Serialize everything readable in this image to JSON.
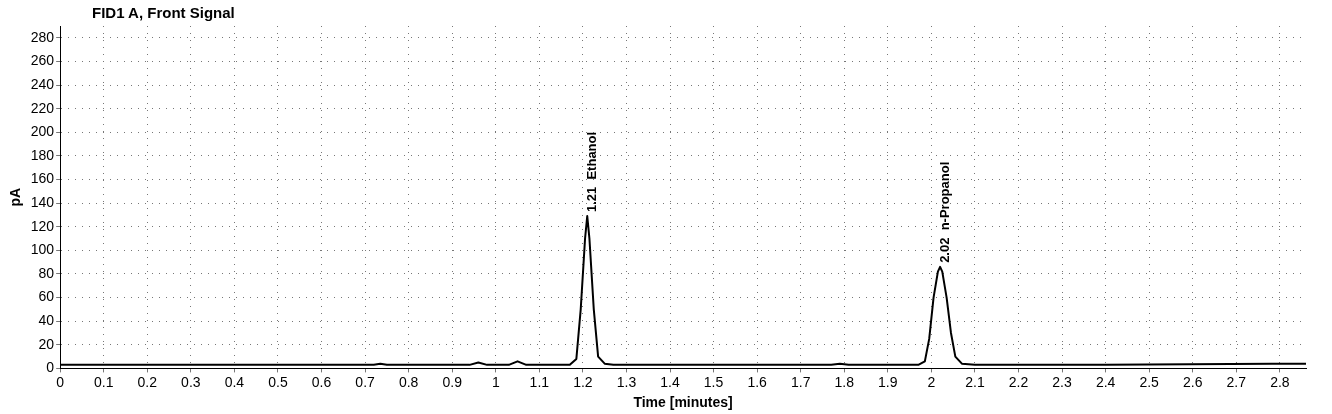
{
  "chart_data": {
    "type": "line",
    "title": "FID1 A, Front Signal",
    "xlabel": "Time [minutes]",
    "ylabel": "pA",
    "xlim": [
      0,
      2.86
    ],
    "xticks": [
      0,
      0.1,
      0.2,
      0.3,
      0.4,
      0.5,
      0.6,
      0.7,
      0.8,
      0.9,
      1,
      1.1,
      1.2,
      1.3,
      1.4,
      1.5,
      1.6,
      1.7,
      1.8,
      1.9,
      2,
      2.1,
      2.2,
      2.3,
      2.4,
      2.5,
      2.6,
      2.7,
      2.8
    ],
    "ylim": [
      0,
      290
    ],
    "yticks": [
      0,
      20,
      40,
      60,
      80,
      100,
      120,
      140,
      160,
      180,
      200,
      220,
      240,
      260,
      280
    ],
    "grid": true,
    "legend": false,
    "marker": "none",
    "line_style": "solid",
    "series": [
      {
        "color": "#000000",
        "x": [
          0,
          0.3,
          0.6,
          0.72,
          0.735,
          0.75,
          0.94,
          0.96,
          0.98,
          1.03,
          1.05,
          1.07,
          1.17,
          1.185,
          1.195,
          1.205,
          1.21,
          1.215,
          1.225,
          1.235,
          1.25,
          1.27,
          1.5,
          1.77,
          1.79,
          1.81,
          1.97,
          1.985,
          1.995,
          2.005,
          2.015,
          2.02,
          2.025,
          2.035,
          2.045,
          2.055,
          2.07,
          2.1,
          2.4,
          2.8,
          2.86
        ],
        "values": [
          3,
          3,
          3,
          3,
          4,
          3,
          3,
          5,
          3,
          3,
          6,
          3,
          3,
          8,
          50,
          110,
          129,
          110,
          50,
          10,
          4,
          3,
          3,
          3,
          4,
          3,
          3,
          6,
          25,
          60,
          82,
          86,
          82,
          60,
          30,
          10,
          4,
          3,
          3,
          4,
          4
        ]
      }
    ],
    "annotations": [
      {
        "text": "1.21  Ethanol",
        "x": 1.21,
        "y": 129
      },
      {
        "text": "2.02  n-Propanol",
        "x": 2.02,
        "y": 86
      }
    ]
  }
}
